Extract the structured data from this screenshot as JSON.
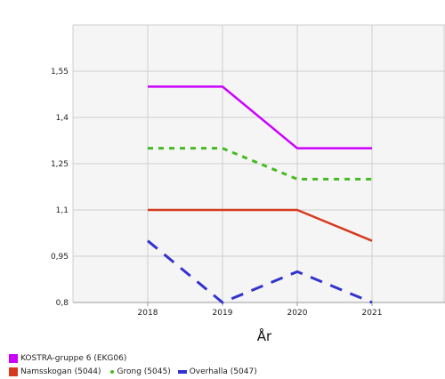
{
  "chart_data": {
    "type": "line",
    "x": [
      "2018",
      "2019",
      "2020",
      "2021"
    ],
    "xlabel": "År",
    "ylabel": "",
    "ylim": [
      0.8,
      1.7
    ],
    "yticks": [
      "0,8",
      "0,95",
      "1,1",
      "1,25",
      "1,4",
      "1,55"
    ],
    "ytick_values": [
      0.8,
      0.95,
      1.1,
      1.25,
      1.4,
      1.55
    ],
    "grid": true,
    "legend_position": "bottom-left",
    "series": [
      {
        "name": "KOSTRA-gruppe 6 (EKG06)",
        "values": [
          1.5,
          1.5,
          1.3,
          1.3
        ],
        "color": "#cc00ff",
        "style": "solid"
      },
      {
        "name": "Namsskogan (5044)",
        "values": [
          1.1,
          1.1,
          1.1,
          1.0
        ],
        "color": "#d63a1e",
        "style": "solid"
      },
      {
        "name": "Grong (5045)",
        "values": [
          1.3,
          1.3,
          1.2,
          1.2
        ],
        "color": "#44bb22",
        "style": "dotted"
      },
      {
        "name": "Overhalla (5047)",
        "values": [
          1.0,
          0.8,
          0.9,
          0.8
        ],
        "color": "#3333cc",
        "style": "dashed"
      }
    ]
  }
}
